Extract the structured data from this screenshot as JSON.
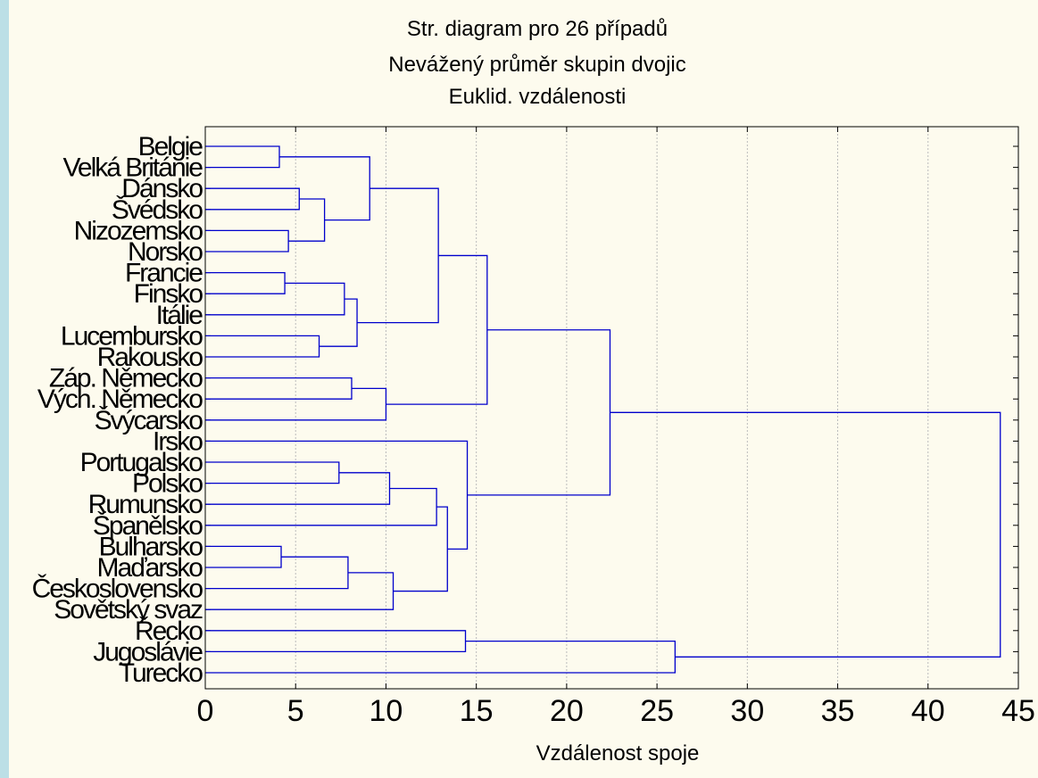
{
  "chart_data": {
    "type": "dendrogram",
    "title_lines": [
      "Str. diagram pro 26 případů",
      "Nevážený průměr skupin dvojic",
      "Euklid. vzdálenosti"
    ],
    "xlabel": "Vzdálenost spoje",
    "ylabel": "",
    "xlim": [
      0,
      45
    ],
    "xticks": [
      0,
      5,
      10,
      15,
      20,
      25,
      30,
      35,
      40,
      45
    ],
    "grid": "vertical",
    "colors": {
      "links": "#0000cc",
      "grid": "#bbbbbb",
      "axes": "#000000"
    },
    "leaves": [
      "Belgie",
      "Velká Británie",
      "Dánsko",
      "Švédsko",
      "Nizozemsko",
      "Norsko",
      "Francie",
      "Finsko",
      "Itálie",
      "Lucembursko",
      "Rakousko",
      "Záp. Německo",
      "Vých. Německo",
      "Švýcarsko",
      "Irsko",
      "Portugalsko",
      "Polsko",
      "Rumunsko",
      "Španělsko",
      "Bulharsko",
      "Maďarsko",
      "Československo",
      "Sovětský svaz",
      "Řecko",
      "Jugoslávie",
      "Turecko"
    ],
    "merges": [
      {
        "id": "c1",
        "a": "Belgie",
        "b": "Velká Británie",
        "distance": 4.1
      },
      {
        "id": "c2",
        "a": "Dánsko",
        "b": "Švédsko",
        "distance": 5.2
      },
      {
        "id": "c3",
        "a": "Nizozemsko",
        "b": "Norsko",
        "distance": 4.6
      },
      {
        "id": "c4",
        "a": "c2",
        "b": "c3",
        "distance": 6.6
      },
      {
        "id": "c5",
        "a": "c1",
        "b": "c4",
        "distance": 9.1
      },
      {
        "id": "c6",
        "a": "Francie",
        "b": "Finsko",
        "distance": 4.4
      },
      {
        "id": "c7",
        "a": "c6",
        "b": "Itálie",
        "distance": 7.7
      },
      {
        "id": "c8",
        "a": "Lucembursko",
        "b": "Rakousko",
        "distance": 6.3
      },
      {
        "id": "c9",
        "a": "c7",
        "b": "c8",
        "distance": 8.4
      },
      {
        "id": "c10",
        "a": "c5",
        "b": "c9",
        "distance": 12.9
      },
      {
        "id": "c11",
        "a": "Záp. Německo",
        "b": "Vých. Německo",
        "distance": 8.1
      },
      {
        "id": "c12",
        "a": "c11",
        "b": "Švýcarsko",
        "distance": 10.0
      },
      {
        "id": "c13",
        "a": "c10",
        "b": "c12",
        "distance": 15.6
      },
      {
        "id": "c14",
        "a": "Portugalsko",
        "b": "Polsko",
        "distance": 7.4
      },
      {
        "id": "c15",
        "a": "c14",
        "b": "Rumunsko",
        "distance": 10.2
      },
      {
        "id": "c16",
        "a": "c15",
        "b": "Španělsko",
        "distance": 12.8
      },
      {
        "id": "c17",
        "a": "Bulharsko",
        "b": "Maďarsko",
        "distance": 4.2
      },
      {
        "id": "c18",
        "a": "c17",
        "b": "Československo",
        "distance": 7.9
      },
      {
        "id": "c19",
        "a": "c18",
        "b": "Sovětský svaz",
        "distance": 10.4
      },
      {
        "id": "c20",
        "a": "c16",
        "b": "c19",
        "distance": 13.4
      },
      {
        "id": "c21",
        "a": "Irsko",
        "b": "c20",
        "distance": 14.5
      },
      {
        "id": "c22",
        "a": "c13",
        "b": "c21",
        "distance": 22.4
      },
      {
        "id": "c23",
        "a": "Řecko",
        "b": "Jugoslávie",
        "distance": 14.4
      },
      {
        "id": "c24",
        "a": "c23",
        "b": "Turecko",
        "distance": 26.0
      },
      {
        "id": "c25",
        "a": "c22",
        "b": "c24",
        "distance": 44.0
      }
    ]
  }
}
